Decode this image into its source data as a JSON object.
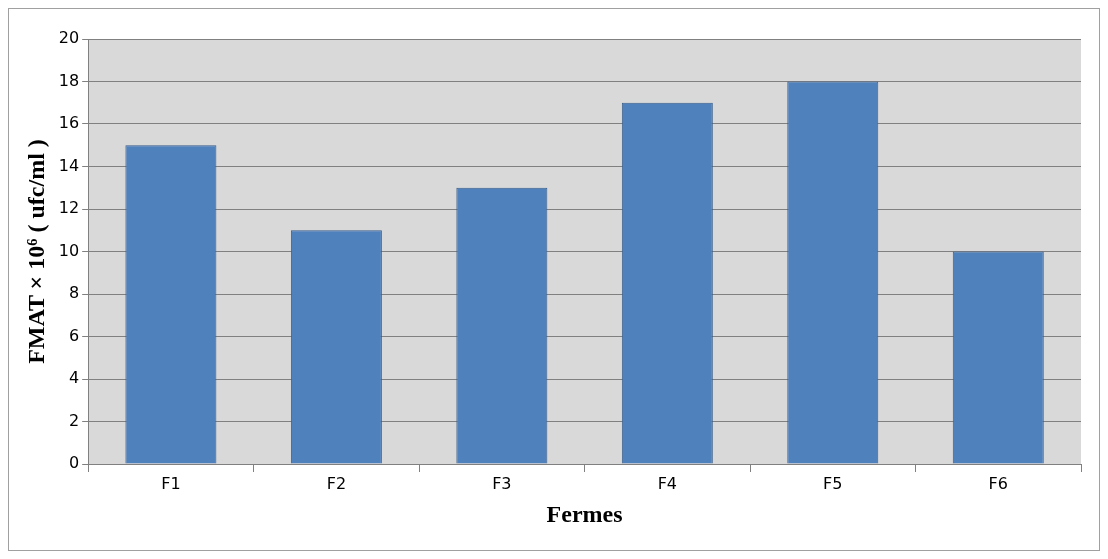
{
  "chart_data": {
    "type": "bar",
    "xlabel": "Fermes",
    "ylabel": "FMAT × 10⁶ ( ufc/ml )",
    "categories": [
      "F1",
      "F2",
      "F3",
      "F4",
      "F5",
      "F6"
    ],
    "values": [
      15,
      11,
      13,
      17,
      18,
      10
    ],
    "color": "#4f81bd",
    "ylim": [
      0,
      20
    ],
    "yticks": [
      0,
      2,
      4,
      6,
      8,
      10,
      12,
      14,
      16,
      18,
      20
    ],
    "grid": "y",
    "legend": false
  }
}
